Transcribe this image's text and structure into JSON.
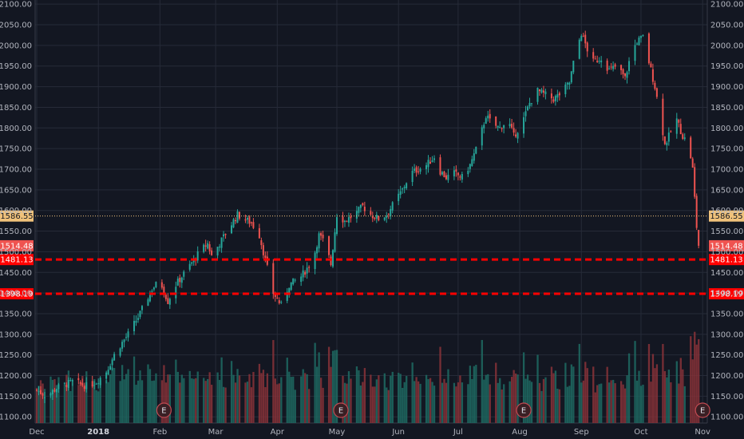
{
  "chart_data": {
    "type": "candlestick",
    "ylim": [
      1085,
      2110
    ],
    "yticks": [
      2100,
      2050,
      2000,
      1950,
      1900,
      1850,
      1800,
      1750,
      1700,
      1650,
      1600,
      1550,
      1500,
      1450,
      1400,
      1350,
      1300,
      1250,
      1200,
      1150,
      1100
    ],
    "ytick_labels": [
      "2100.00",
      "2050.00",
      "2000.00",
      "1950.00",
      "1900.00",
      "1850.00",
      "1800.00",
      "1750.00",
      "1700.00",
      "1650.00",
      "1600.00",
      "1550.00",
      "1500.00",
      "1450.00",
      "1400.00",
      "1350.00",
      "1300.00",
      "1250.00",
      "1200.00",
      "1150.00",
      "1100.00"
    ],
    "x_tick_labels": [
      {
        "label": "Dec",
        "day": 0
      },
      {
        "label": "2018",
        "day": 31
      },
      {
        "label": "Feb",
        "day": 62
      },
      {
        "label": "Mar",
        "day": 90
      },
      {
        "label": "Apr",
        "day": 121
      },
      {
        "label": "May",
        "day": 151
      },
      {
        "label": "Jun",
        "day": 182
      },
      {
        "label": "Jul",
        "day": 212
      },
      {
        "label": "Aug",
        "day": 243
      },
      {
        "label": "Sep",
        "day": 274
      },
      {
        "label": "Oct",
        "day": 304
      },
      {
        "label": "Nov",
        "day": 335
      }
    ],
    "close_points": [
      {
        "day": 0,
        "close": 1165
      },
      {
        "day": 5,
        "close": 1150
      },
      {
        "day": 10,
        "close": 1170
      },
      {
        "day": 18,
        "close": 1185
      },
      {
        "day": 25,
        "close": 1175
      },
      {
        "day": 30,
        "close": 1185
      },
      {
        "day": 35,
        "close": 1210
      },
      {
        "day": 40,
        "close": 1260
      },
      {
        "day": 46,
        "close": 1300
      },
      {
        "day": 52,
        "close": 1350
      },
      {
        "day": 58,
        "close": 1410
      },
      {
        "day": 62,
        "close": 1430
      },
      {
        "day": 66,
        "close": 1380
      },
      {
        "day": 70,
        "close": 1420
      },
      {
        "day": 76,
        "close": 1460
      },
      {
        "day": 82,
        "close": 1500
      },
      {
        "day": 86,
        "close": 1520
      },
      {
        "day": 88,
        "close": 1490
      },
      {
        "day": 92,
        "close": 1520
      },
      {
        "day": 97,
        "close": 1560
      },
      {
        "day": 101,
        "close": 1590
      },
      {
        "day": 104,
        "close": 1580
      },
      {
        "day": 108,
        "close": 1570
      },
      {
        "day": 112,
        "close": 1540
      },
      {
        "day": 116,
        "close": 1460
      },
      {
        "day": 119,
        "close": 1400
      },
      {
        "day": 123,
        "close": 1370
      },
      {
        "day": 127,
        "close": 1420
      },
      {
        "day": 133,
        "close": 1440
      },
      {
        "day": 139,
        "close": 1480
      },
      {
        "day": 142,
        "close": 1540
      },
      {
        "day": 145,
        "close": 1520
      },
      {
        "day": 148,
        "close": 1470
      },
      {
        "day": 151,
        "close": 1590
      },
      {
        "day": 155,
        "close": 1575
      },
      {
        "day": 160,
        "close": 1590
      },
      {
        "day": 164,
        "close": 1610
      },
      {
        "day": 168,
        "close": 1590
      },
      {
        "day": 172,
        "close": 1580
      },
      {
        "day": 176,
        "close": 1590
      },
      {
        "day": 180,
        "close": 1620
      },
      {
        "day": 184,
        "close": 1650
      },
      {
        "day": 188,
        "close": 1690
      },
      {
        "day": 192,
        "close": 1700
      },
      {
        "day": 196,
        "close": 1710
      },
      {
        "day": 200,
        "close": 1730
      },
      {
        "day": 202,
        "close": 1700
      },
      {
        "day": 206,
        "close": 1680
      },
      {
        "day": 210,
        "close": 1690
      },
      {
        "day": 214,
        "close": 1680
      },
      {
        "day": 218,
        "close": 1710
      },
      {
        "day": 222,
        "close": 1760
      },
      {
        "day": 226,
        "close": 1830
      },
      {
        "day": 229,
        "close": 1810
      },
      {
        "day": 233,
        "close": 1800
      },
      {
        "day": 237,
        "close": 1820
      },
      {
        "day": 240,
        "close": 1780
      },
      {
        "day": 244,
        "close": 1810
      },
      {
        "day": 248,
        "close": 1860
      },
      {
        "day": 252,
        "close": 1890
      },
      {
        "day": 256,
        "close": 1880
      },
      {
        "day": 260,
        "close": 1870
      },
      {
        "day": 264,
        "close": 1885
      },
      {
        "day": 268,
        "close": 1910
      },
      {
        "day": 271,
        "close": 1980
      },
      {
        "day": 274,
        "close": 2030
      },
      {
        "day": 277,
        "close": 1990
      },
      {
        "day": 280,
        "close": 1960
      },
      {
        "day": 284,
        "close": 1970
      },
      {
        "day": 288,
        "close": 1940
      },
      {
        "day": 292,
        "close": 1950
      },
      {
        "day": 296,
        "close": 1920
      },
      {
        "day": 299,
        "close": 1980
      },
      {
        "day": 302,
        "close": 2010
      },
      {
        "day": 305,
        "close": 2020
      },
      {
        "day": 308,
        "close": 1960
      },
      {
        "day": 311,
        "close": 1900
      },
      {
        "day": 314,
        "close": 1820
      },
      {
        "day": 316,
        "close": 1760
      },
      {
        "day": 319,
        "close": 1790
      },
      {
        "day": 322,
        "close": 1820
      },
      {
        "day": 325,
        "close": 1780
      },
      {
        "day": 328,
        "close": 1760
      },
      {
        "day": 330,
        "close": 1700
      },
      {
        "day": 332,
        "close": 1560
      },
      {
        "day": 333,
        "close": 1514.48
      }
    ],
    "price_lines": [
      {
        "name": "current-price-line",
        "value": 1586.55,
        "label": "1586.55",
        "color": "#f0c27b",
        "style": "dotted"
      },
      {
        "name": "last-price-marker",
        "value": 1514.48,
        "label": "1514.48",
        "color": "#ef5350",
        "style": "none"
      },
      {
        "name": "support-line-1",
        "value": 1481.13,
        "label": "1481.13",
        "color": "#ff0000",
        "style": "dashed"
      },
      {
        "name": "support-line-2",
        "value": 1398.19,
        "label": "1398.19",
        "color": "#ff0000",
        "style": "dashed"
      }
    ],
    "earnings_markers": [
      {
        "day": 62,
        "label": "E"
      },
      {
        "day": 151,
        "label": "E"
      },
      {
        "day": 243,
        "label": "E"
      },
      {
        "day": 333,
        "label": "E"
      }
    ],
    "colors": {
      "up": "#26a69a",
      "down": "#ef5350",
      "background": "#131722",
      "grid": "#262b38"
    }
  }
}
